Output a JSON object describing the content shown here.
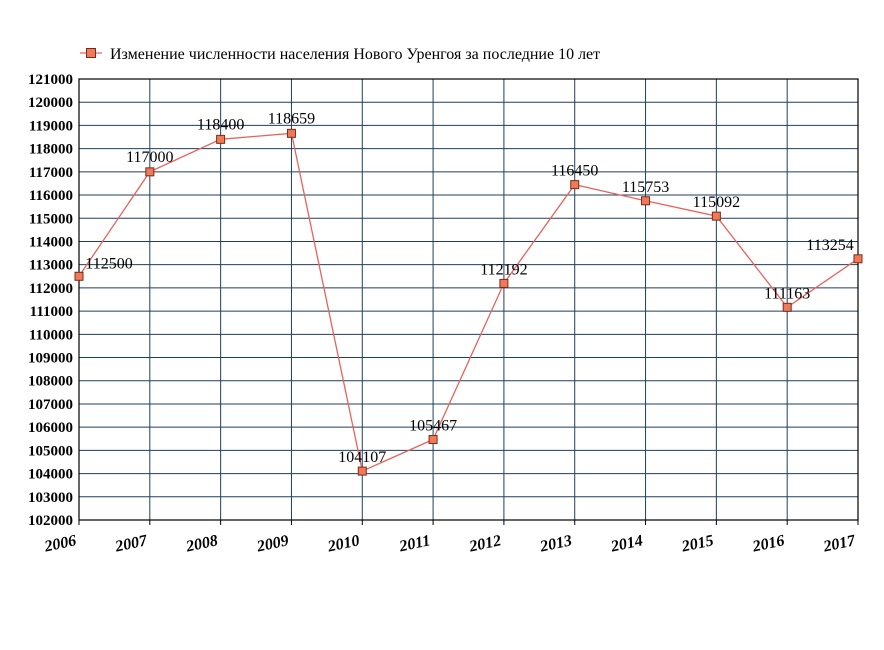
{
  "chart_data": {
    "type": "line",
    "title": "",
    "xlabel": "",
    "ylabel": "",
    "x": [
      "2006",
      "2007",
      "2008",
      "2009",
      "2010",
      "2011",
      "2012",
      "2013",
      "2014",
      "2015",
      "2016",
      "2017"
    ],
    "series": [
      {
        "name": "Изменение численности населения Нового Уренгоя за последние 10 лет",
        "values": [
          112500,
          117000,
          118400,
          118659,
          104107,
          105467,
          112192,
          116450,
          115753,
          115092,
          111163,
          113254
        ]
      }
    ],
    "data_labels": [
      "112500",
      "117000",
      "118400",
      "118659",
      "104107",
      "105467",
      "112192",
      "116450",
      "115753",
      "115092",
      "111163",
      "113254"
    ],
    "ylim": [
      102000,
      121000
    ],
    "y_ticks": [
      "102000",
      "103000",
      "104000",
      "105000",
      "106000",
      "107000",
      "108000",
      "109000",
      "110000",
      "111000",
      "112000",
      "113000",
      "114000",
      "115000",
      "116000",
      "117000",
      "118000",
      "119000",
      "120000",
      "121000"
    ],
    "grid": true,
    "legend_position": "top",
    "colors": {
      "line": "#e8625a",
      "marker_fill": "#f07a58",
      "marker_stroke": "#7a2a18",
      "grid": "#1f3f5f",
      "axis": "#000000"
    }
  }
}
